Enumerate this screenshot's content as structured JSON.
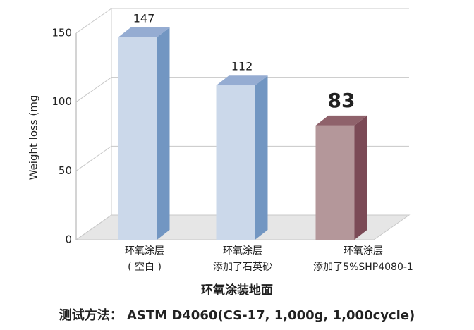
{
  "chart_data": {
    "type": "bar3d",
    "y_label": "Weight loss (mg",
    "x_label": "环氧涂装地面",
    "footnote": "测试方法： ASTM D4060(CS-17, 1,000g, 1,000cycle)",
    "categories": [
      [
        "环氧涂层",
        "( 空白 )"
      ],
      [
        "环氧涂层",
        "添加了石英砂"
      ],
      [
        "环氧涂层",
        "添加了5%SHP4080-1"
      ]
    ],
    "values": [
      147,
      112,
      83
    ],
    "colors": [
      {
        "front": "#cbd8ea",
        "side": "#7296c2",
        "top": "#95acd2"
      },
      {
        "front": "#cbd8ea",
        "side": "#7296c2",
        "top": "#95acd2"
      },
      {
        "front": "#b4979a",
        "side": "#7b4a56",
        "top": "#8f626b"
      }
    ],
    "value_label_colors": [
      "#222222",
      "#222222",
      "#c0282d"
    ],
    "ylim": [
      0,
      150
    ],
    "yticks": [
      0,
      50,
      100,
      150
    ],
    "grid": true
  }
}
